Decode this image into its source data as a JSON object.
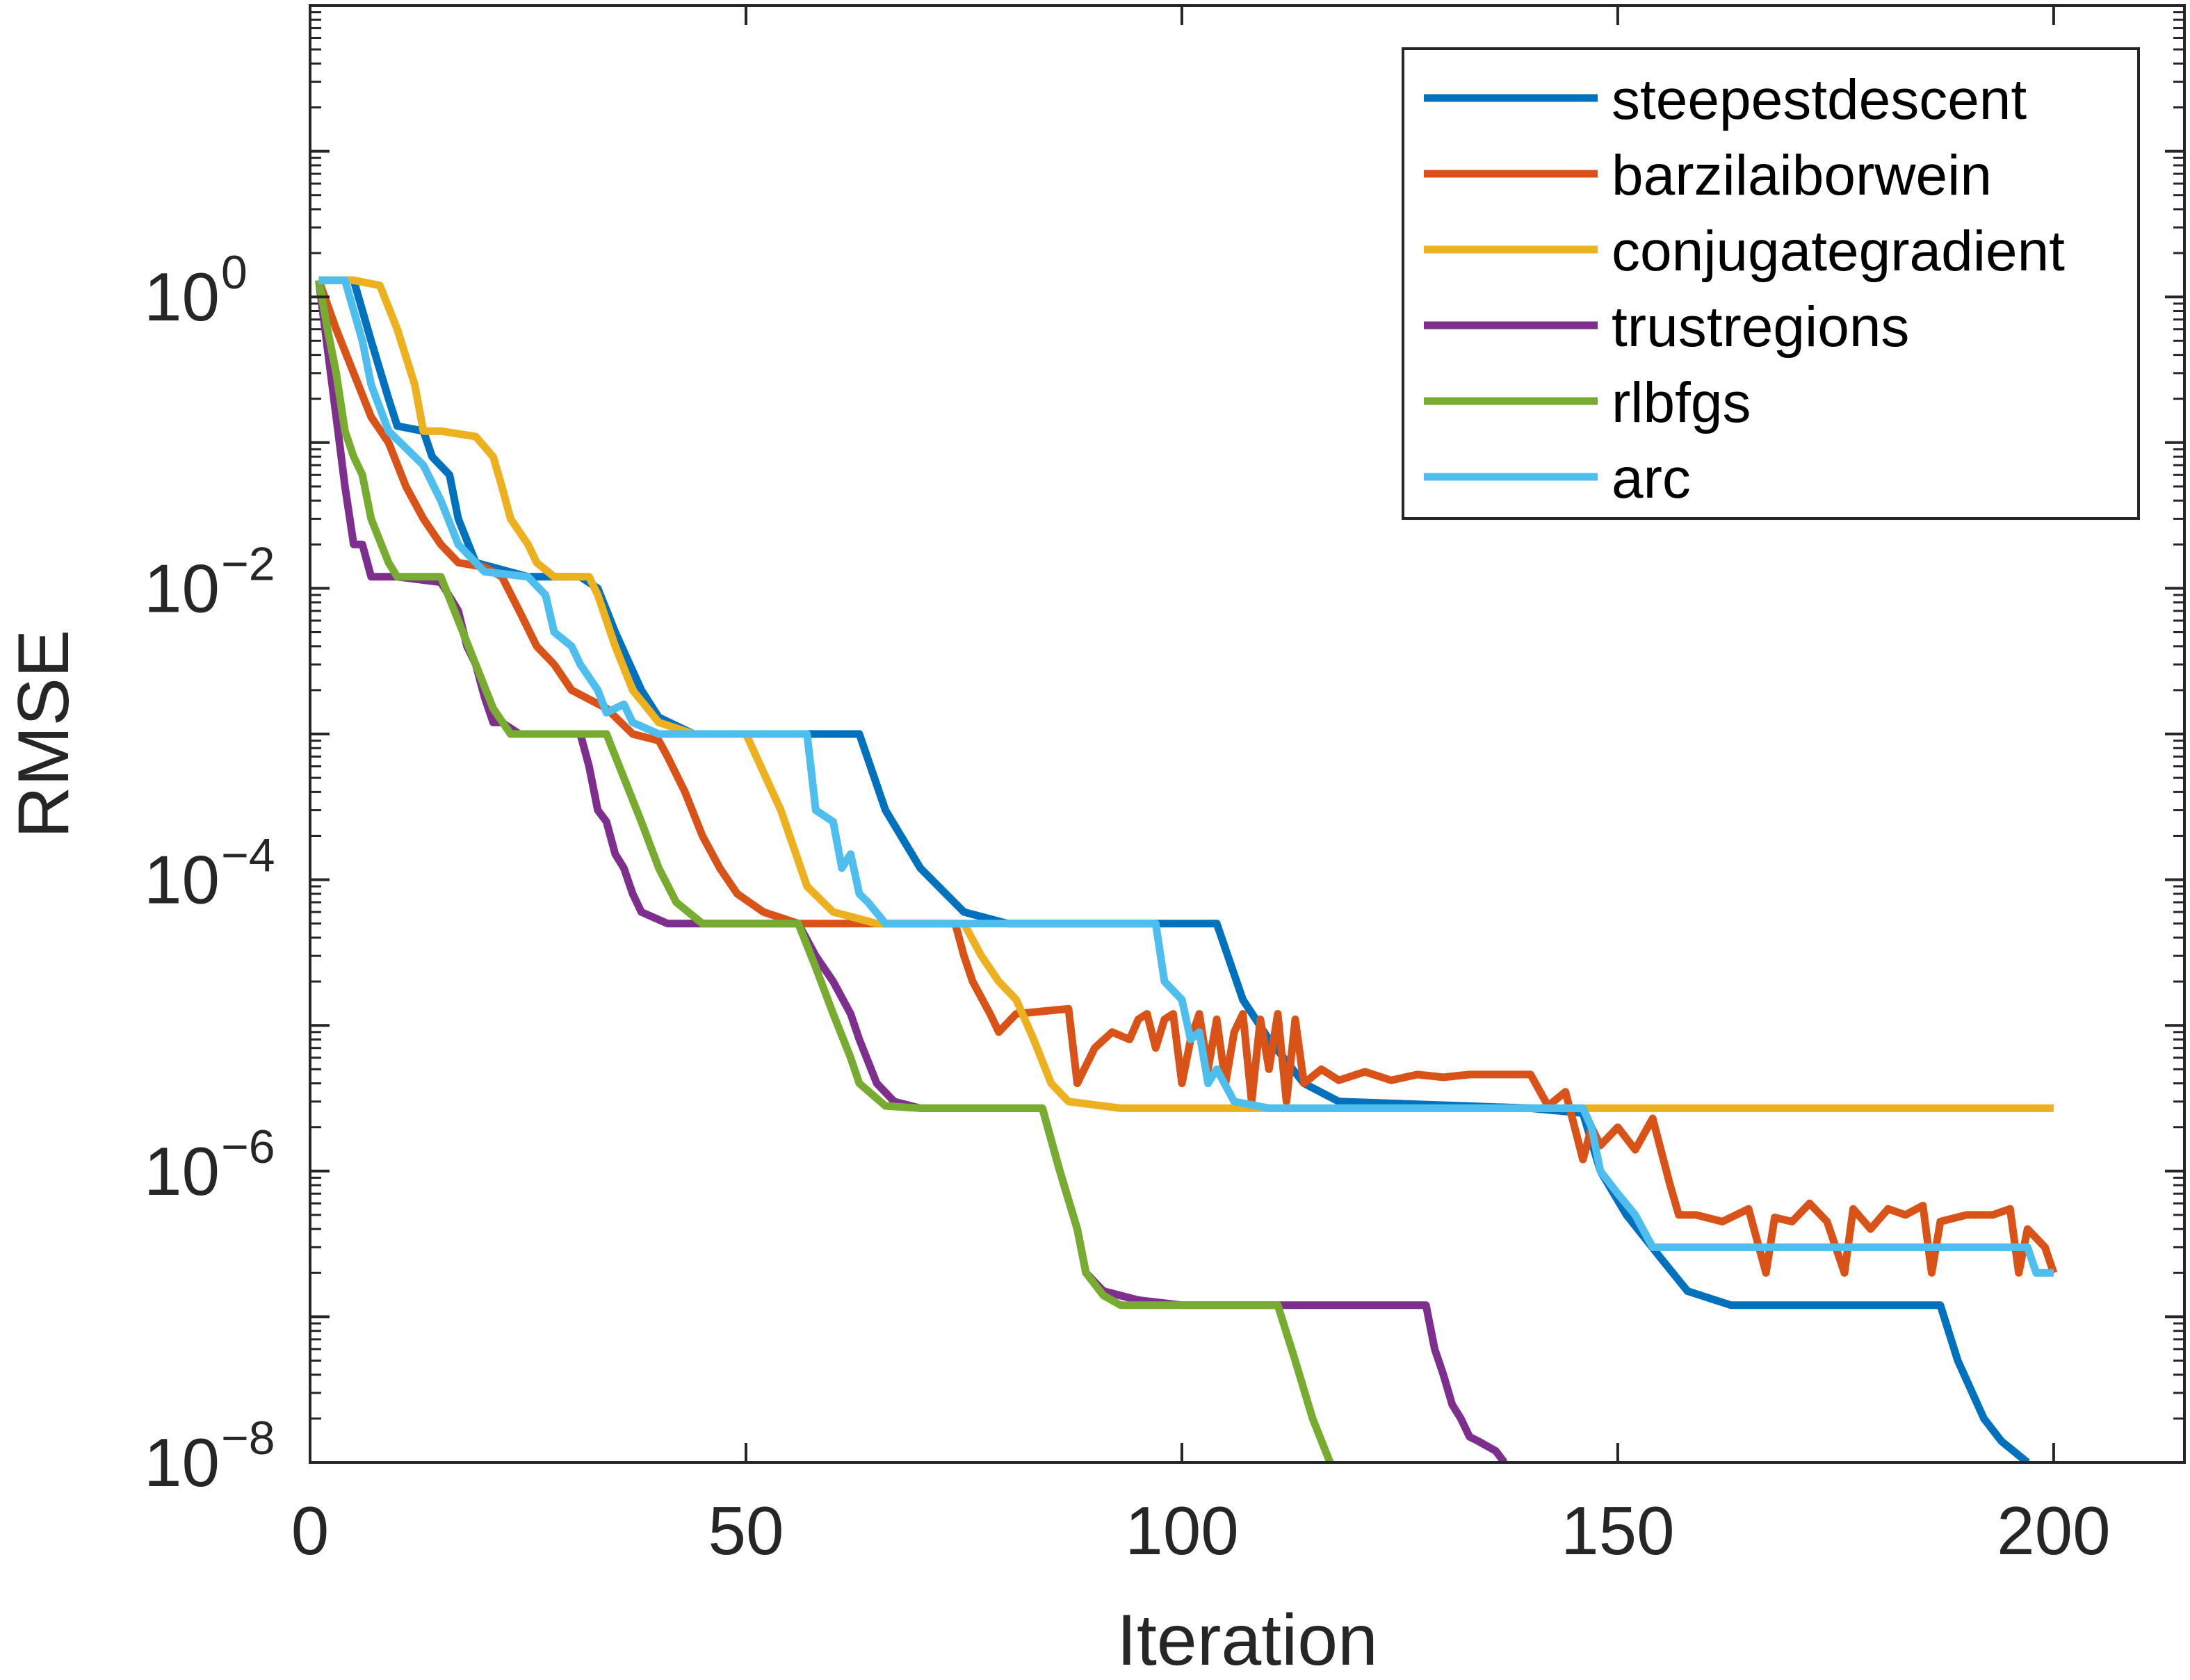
{
  "chart_data": {
    "type": "line",
    "xlabel": "Iteration",
    "ylabel": "RMSE",
    "xscale": "linear",
    "yscale": "log",
    "xlim": [
      0,
      215
    ],
    "ylim": [
      1e-08,
      100
    ],
    "xticks": [
      {
        "value": 0,
        "label": "0"
      },
      {
        "value": 50,
        "label": "50"
      },
      {
        "value": 100,
        "label": "100"
      },
      {
        "value": 150,
        "label": "150"
      },
      {
        "value": 200,
        "label": "200"
      }
    ],
    "yticks": [
      {
        "exp": 0,
        "base": "10",
        "sup": "0"
      },
      {
        "exp": -2,
        "base": "10",
        "sup": "−2"
      },
      {
        "exp": -4,
        "base": "10",
        "sup": "−4"
      },
      {
        "exp": -6,
        "base": "10",
        "sup": "−6"
      },
      {
        "exp": -8,
        "base": "10",
        "sup": "−8"
      }
    ],
    "legend_position": "top-right",
    "series": [
      {
        "name": "steepestdescent",
        "color": "#0072BD",
        "points": [
          [
            1,
            1.3
          ],
          [
            5,
            1.3
          ],
          [
            7,
            0.5
          ],
          [
            9,
            0.2
          ],
          [
            10,
            0.13
          ],
          [
            13,
            0.12
          ],
          [
            14,
            0.08
          ],
          [
            16,
            0.06
          ],
          [
            17,
            0.03
          ],
          [
            19,
            0.015
          ],
          [
            25,
            0.012
          ],
          [
            31,
            0.012
          ],
          [
            33,
            0.01
          ],
          [
            35,
            0.005
          ],
          [
            38,
            0.002
          ],
          [
            40,
            0.0013
          ],
          [
            44,
            0.001
          ],
          [
            63,
            0.001
          ],
          [
            66,
            0.0003
          ],
          [
            70,
            0.00012
          ],
          [
            75,
            6e-05
          ],
          [
            80,
            5e-05
          ],
          [
            104,
            5e-05
          ],
          [
            107,
            1.5e-05
          ],
          [
            110,
            8e-06
          ],
          [
            114,
            4e-06
          ],
          [
            118,
            3e-06
          ],
          [
            140,
            2.7e-06
          ],
          [
            146,
            2.5e-06
          ],
          [
            148,
            1e-06
          ],
          [
            151,
            5e-07
          ],
          [
            155,
            2.5e-07
          ],
          [
            158,
            1.5e-07
          ],
          [
            163,
            1.2e-07
          ],
          [
            187,
            1.2e-07
          ],
          [
            189,
            5e-08
          ],
          [
            192,
            2e-08
          ],
          [
            194,
            1.4e-08
          ],
          [
            197,
            1e-08
          ]
        ]
      },
      {
        "name": "barzilaiborwein",
        "color": "#D95319",
        "points": [
          [
            1,
            1.3
          ],
          [
            3,
            0.6
          ],
          [
            5,
            0.3
          ],
          [
            7,
            0.15
          ],
          [
            9,
            0.1
          ],
          [
            11,
            0.05
          ],
          [
            13,
            0.03
          ],
          [
            15,
            0.02
          ],
          [
            17,
            0.015
          ],
          [
            20,
            0.014
          ],
          [
            22,
            0.012
          ],
          [
            24,
            0.007
          ],
          [
            26,
            0.004
          ],
          [
            28,
            0.003
          ],
          [
            30,
            0.002
          ],
          [
            34,
            0.0015
          ],
          [
            37,
            0.001
          ],
          [
            40,
            0.0009
          ],
          [
            41,
            0.0007
          ],
          [
            43,
            0.0004
          ],
          [
            45,
            0.0002
          ],
          [
            47,
            0.00012
          ],
          [
            49,
            8e-05
          ],
          [
            52,
            6e-05
          ],
          [
            56,
            5e-05
          ],
          [
            74,
            5e-05
          ],
          [
            75,
            3e-05
          ],
          [
            76,
            2e-05
          ],
          [
            78,
            1.2e-05
          ],
          [
            79,
            9e-06
          ],
          [
            81,
            1.2e-05
          ],
          [
            87,
            1.3e-05
          ],
          [
            88,
            4e-06
          ],
          [
            90,
            7e-06
          ],
          [
            92,
            9e-06
          ],
          [
            94,
            8e-06
          ],
          [
            95,
            1.1e-05
          ],
          [
            96,
            1.2e-05
          ],
          [
            97,
            7e-06
          ],
          [
            98,
            1.1e-05
          ],
          [
            99,
            1.2e-05
          ],
          [
            100,
            4e-06
          ],
          [
            101,
            8e-06
          ],
          [
            102,
            1.2e-05
          ],
          [
            103,
            5e-06
          ],
          [
            104,
            1.1e-05
          ],
          [
            105,
            4e-06
          ],
          [
            106,
            9e-06
          ],
          [
            107,
            1.2e-05
          ],
          [
            108,
            3e-06
          ],
          [
            109,
            1.1e-05
          ],
          [
            110,
            5e-06
          ],
          [
            111,
            1.2e-05
          ],
          [
            112,
            3e-06
          ],
          [
            113,
            1.1e-05
          ],
          [
            114,
            4e-06
          ],
          [
            116,
            5e-06
          ],
          [
            118,
            4.2e-06
          ],
          [
            121,
            4.8e-06
          ],
          [
            124,
            4.2e-06
          ],
          [
            127,
            4.6e-06
          ],
          [
            130,
            4.4e-06
          ],
          [
            133,
            4.6e-06
          ],
          [
            137,
            4.6e-06
          ],
          [
            140,
            4.6e-06
          ],
          [
            142,
            2.8e-06
          ],
          [
            144,
            3.5e-06
          ],
          [
            146,
            1.2e-06
          ],
          [
            147,
            2e-06
          ],
          [
            148,
            1.5e-06
          ],
          [
            150,
            2e-06
          ],
          [
            152,
            1.4e-06
          ],
          [
            154,
            2.3e-06
          ],
          [
            156,
            8e-07
          ],
          [
            157,
            5e-07
          ],
          [
            159,
            5e-07
          ],
          [
            162,
            4.5e-07
          ],
          [
            165,
            5.5e-07
          ],
          [
            167,
            2e-07
          ],
          [
            168,
            4.8e-07
          ],
          [
            170,
            4.5e-07
          ],
          [
            172,
            6e-07
          ],
          [
            174,
            4.5e-07
          ],
          [
            176,
            2e-07
          ],
          [
            177,
            5.5e-07
          ],
          [
            179,
            4e-07
          ],
          [
            181,
            5.5e-07
          ],
          [
            183,
            5e-07
          ],
          [
            185,
            5.8e-07
          ],
          [
            186,
            2e-07
          ],
          [
            187,
            4.5e-07
          ],
          [
            190,
            5e-07
          ],
          [
            193,
            5e-07
          ],
          [
            195,
            5.5e-07
          ],
          [
            196,
            2e-07
          ],
          [
            197,
            4e-07
          ],
          [
            199,
            3e-07
          ],
          [
            200,
            2e-07
          ]
        ]
      },
      {
        "name": "conjugategradient",
        "color": "#EDB120",
        "points": [
          [
            1,
            1.3
          ],
          [
            5,
            1.3
          ],
          [
            8,
            1.2
          ],
          [
            10,
            0.6
          ],
          [
            12,
            0.25
          ],
          [
            13,
            0.12
          ],
          [
            15,
            0.12
          ],
          [
            19,
            0.11
          ],
          [
            21,
            0.08
          ],
          [
            22,
            0.05
          ],
          [
            23,
            0.03
          ],
          [
            25,
            0.02
          ],
          [
            26,
            0.015
          ],
          [
            28,
            0.012
          ],
          [
            32,
            0.012
          ],
          [
            33,
            0.009
          ],
          [
            35,
            0.004
          ],
          [
            37,
            0.002
          ],
          [
            40,
            0.0012
          ],
          [
            44,
            0.001
          ],
          [
            50,
            0.001
          ],
          [
            54,
            0.0003
          ],
          [
            57,
            9e-05
          ],
          [
            60,
            6e-05
          ],
          [
            65,
            5e-05
          ],
          [
            75,
            5e-05
          ],
          [
            77,
            3e-05
          ],
          [
            79,
            2e-05
          ],
          [
            81,
            1.5e-05
          ],
          [
            83,
            8e-06
          ],
          [
            85,
            4e-06
          ],
          [
            87,
            3e-06
          ],
          [
            93,
            2.7e-06
          ],
          [
            200,
            2.7e-06
          ]
        ]
      },
      {
        "name": "trustregions",
        "color": "#7E2F8E",
        "points": [
          [
            1,
            1.3
          ],
          [
            3,
            0.15
          ],
          [
            4,
            0.05
          ],
          [
            5,
            0.02
          ],
          [
            6,
            0.02
          ],
          [
            7,
            0.012
          ],
          [
            10,
            0.012
          ],
          [
            15,
            0.011
          ],
          [
            17,
            0.007
          ],
          [
            18,
            0.004
          ],
          [
            19,
            0.003
          ],
          [
            20,
            0.0018
          ],
          [
            21,
            0.0012
          ],
          [
            22,
            0.0012
          ],
          [
            24,
            0.001
          ],
          [
            31,
            0.001
          ],
          [
            32,
            0.0006
          ],
          [
            33,
            0.0003
          ],
          [
            34,
            0.00025
          ],
          [
            35,
            0.00015
          ],
          [
            36,
            0.00012
          ],
          [
            37,
            8e-05
          ],
          [
            38,
            6e-05
          ],
          [
            41,
            5e-05
          ],
          [
            56,
            5e-05
          ],
          [
            58,
            3e-05
          ],
          [
            60,
            2e-05
          ],
          [
            62,
            1.2e-05
          ],
          [
            63,
            8e-06
          ],
          [
            65,
            4e-06
          ],
          [
            67,
            3e-06
          ],
          [
            70,
            2.7e-06
          ],
          [
            84,
            2.7e-06
          ],
          [
            86,
            1e-06
          ],
          [
            88,
            4e-07
          ],
          [
            89,
            2e-07
          ],
          [
            91,
            1.5e-07
          ],
          [
            95,
            1.3e-07
          ],
          [
            100,
            1.2e-07
          ],
          [
            128,
            1.2e-07
          ],
          [
            129,
            6e-08
          ],
          [
            130,
            4e-08
          ],
          [
            131,
            2.5e-08
          ],
          [
            132,
            2e-08
          ],
          [
            133,
            1.5e-08
          ],
          [
            134,
            1.4e-08
          ],
          [
            136,
            1.2e-08
          ],
          [
            137,
            1e-08
          ]
        ]
      },
      {
        "name": "rlbfgs",
        "color": "#77AC30",
        "points": [
          [
            1,
            1.3
          ],
          [
            2,
            0.6
          ],
          [
            3,
            0.3
          ],
          [
            4,
            0.12
          ],
          [
            5,
            0.08
          ],
          [
            6,
            0.06
          ],
          [
            7,
            0.03
          ],
          [
            9,
            0.015
          ],
          [
            10,
            0.012
          ],
          [
            15,
            0.012
          ],
          [
            17,
            0.006
          ],
          [
            19,
            0.003
          ],
          [
            21,
            0.0015
          ],
          [
            23,
            0.001
          ],
          [
            34,
            0.001
          ],
          [
            36,
            0.0005
          ],
          [
            38,
            0.00025
          ],
          [
            40,
            0.00012
          ],
          [
            42,
            7e-05
          ],
          [
            45,
            5e-05
          ],
          [
            56,
            5e-05
          ],
          [
            58,
            2.5e-05
          ],
          [
            60,
            1.2e-05
          ],
          [
            62,
            6e-06
          ],
          [
            63,
            4e-06
          ],
          [
            66,
            2.8e-06
          ],
          [
            70,
            2.7e-06
          ],
          [
            84,
            2.7e-06
          ],
          [
            86,
            1e-06
          ],
          [
            88,
            4e-07
          ],
          [
            89,
            2e-07
          ],
          [
            91,
            1.4e-07
          ],
          [
            93,
            1.2e-07
          ],
          [
            111,
            1.2e-07
          ],
          [
            113,
            5e-08
          ],
          [
            115,
            2e-08
          ],
          [
            117,
            1e-08
          ]
        ]
      },
      {
        "name": "arc",
        "color": "#4DBEEE",
        "points": [
          [
            1,
            1.3
          ],
          [
            4,
            1.3
          ],
          [
            6,
            0.5
          ],
          [
            7,
            0.25
          ],
          [
            9,
            0.12
          ],
          [
            13,
            0.07
          ],
          [
            15,
            0.04
          ],
          [
            17,
            0.02
          ],
          [
            20,
            0.013
          ],
          [
            25,
            0.012
          ],
          [
            27,
            0.009
          ],
          [
            28,
            0.005
          ],
          [
            30,
            0.004
          ],
          [
            31,
            0.003
          ],
          [
            33,
            0.002
          ],
          [
            34,
            0.0014
          ],
          [
            36,
            0.0016
          ],
          [
            37,
            0.0012
          ],
          [
            40,
            0.001
          ],
          [
            57,
            0.001
          ],
          [
            58,
            0.0003
          ],
          [
            60,
            0.00025
          ],
          [
            61,
            0.00012
          ],
          [
            62,
            0.00015
          ],
          [
            63,
            8e-05
          ],
          [
            64,
            7e-05
          ],
          [
            66,
            5e-05
          ],
          [
            97,
            5e-05
          ],
          [
            98,
            2e-05
          ],
          [
            100,
            1.5e-05
          ],
          [
            101,
            8e-06
          ],
          [
            102,
            9e-06
          ],
          [
            103,
            4e-06
          ],
          [
            104,
            5e-06
          ],
          [
            106,
            3e-06
          ],
          [
            110,
            2.7e-06
          ],
          [
            140,
            2.7e-06
          ],
          [
            146,
            2.7e-06
          ],
          [
            147,
            2e-06
          ],
          [
            148,
            1e-06
          ],
          [
            150,
            7e-07
          ],
          [
            152,
            5e-07
          ],
          [
            154,
            3e-07
          ],
          [
            162,
            3e-07
          ],
          [
            197,
            3e-07
          ],
          [
            198,
            2e-07
          ],
          [
            200,
            2e-07
          ]
        ]
      }
    ]
  }
}
